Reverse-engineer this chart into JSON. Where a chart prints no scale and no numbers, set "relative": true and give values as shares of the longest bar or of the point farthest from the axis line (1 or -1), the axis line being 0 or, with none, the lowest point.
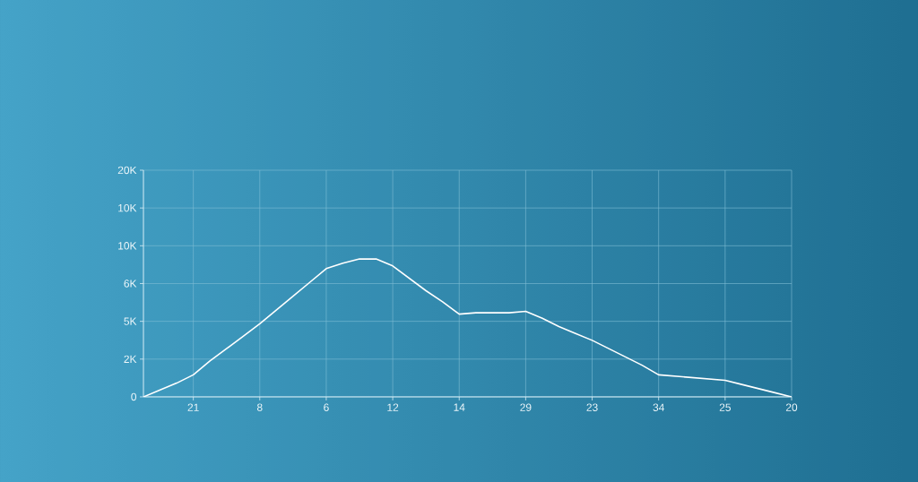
{
  "chart_data": {
    "type": "line",
    "color": "#ffffff",
    "grid": true,
    "marker": "none",
    "relative": true,
    "categories": [
      null,
      null,
      null,
      "21",
      null,
      null,
      null,
      "8",
      null,
      null,
      null,
      "6",
      null,
      null,
      null,
      "12",
      null,
      null,
      null,
      "14",
      null,
      null,
      null,
      "29",
      null,
      null,
      null,
      "23",
      null,
      null,
      null,
      "34",
      null,
      null,
      null,
      "25",
      null,
      null,
      null,
      "20"
    ],
    "values": [
      0,
      0.05,
      0.1,
      0.16,
      0.26,
      0.35,
      0.44,
      0.53,
      0.63,
      0.73,
      0.83,
      0.93,
      0.97,
      1,
      1,
      0.95,
      0.86,
      0.77,
      0.69,
      0.6,
      0.61,
      0.61,
      0.61,
      0.62,
      0.57,
      0.51,
      0.46,
      0.41,
      0.35,
      0.29,
      0.23,
      0.16,
      0.15,
      0.14,
      0.13,
      0.12,
      0.09,
      0.06,
      0.03,
      0
    ],
    "annotations": [
      "0",
      "2K",
      "5K",
      "6K",
      "10K",
      "10K",
      "20K"
    ]
  }
}
